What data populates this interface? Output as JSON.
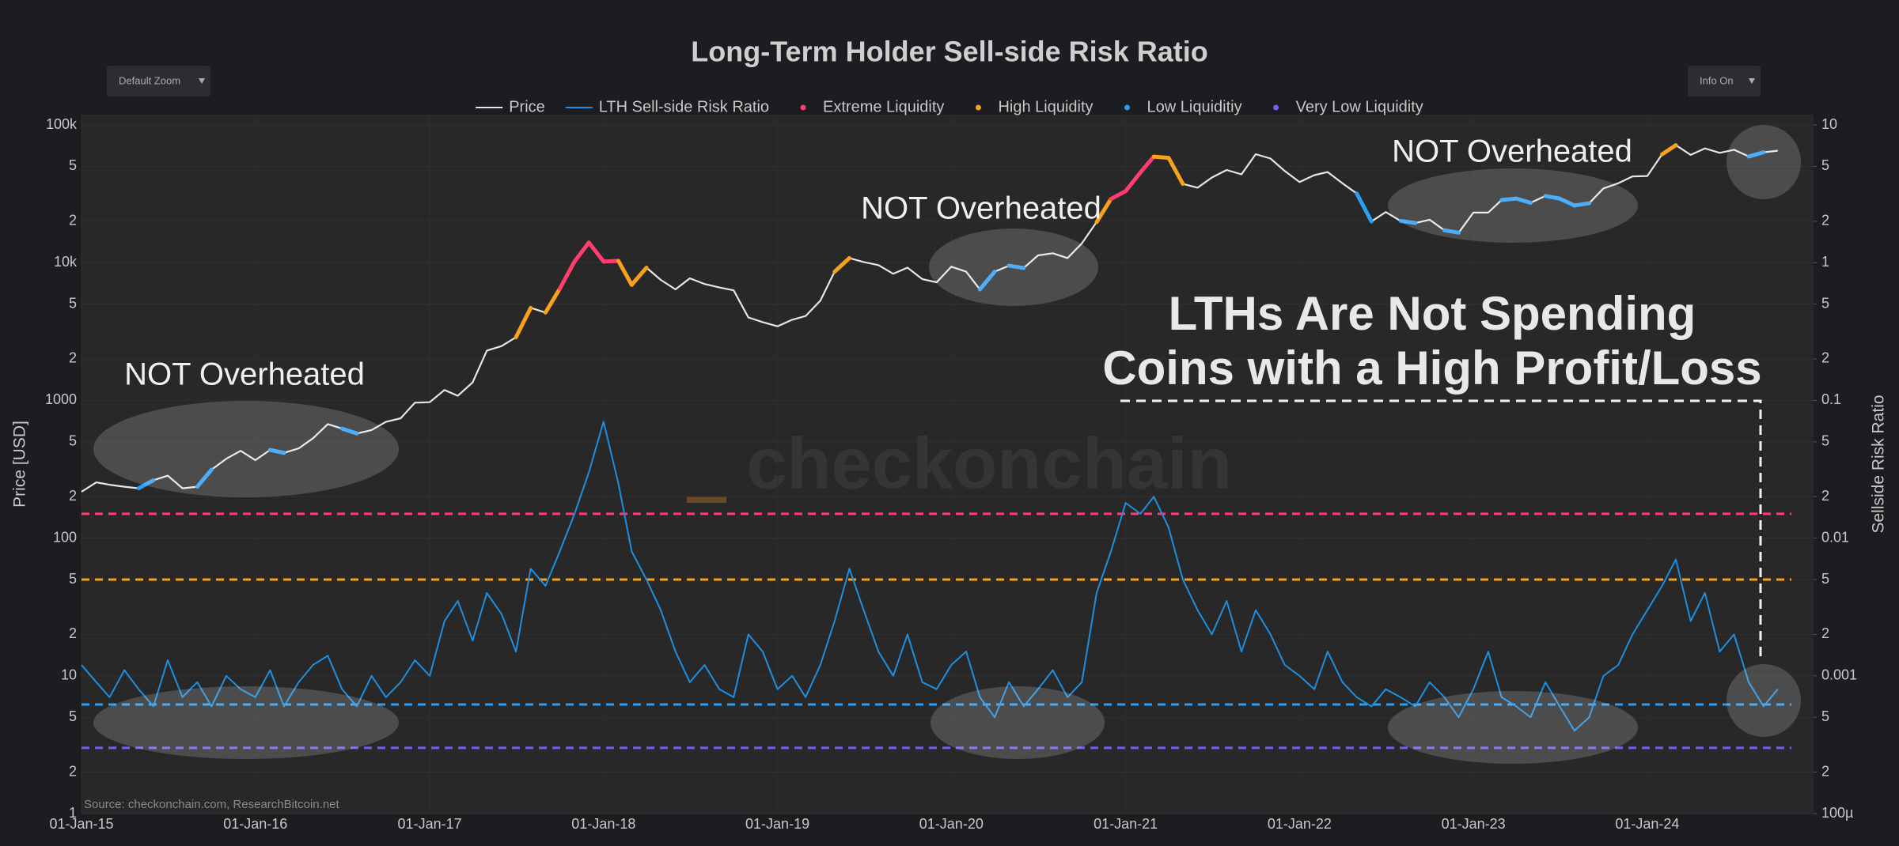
{
  "chart_data": {
    "type": "line",
    "title": "Long-Term Holder Sell-side Risk Ratio",
    "y_label": "Price [USD]",
    "y2_label": "Sellside Risk Ratio",
    "buttons": [
      "Default Zoom",
      "Info On"
    ],
    "watermark": "checkonchain",
    "source": "Source: checkonchain.com, ResearchBitcoin.net",
    "annotations": [
      "NOT Overheated",
      "NOT Overheated",
      "NOT Overheated",
      "LTHs Are Not Spending",
      "Coins with a High Profit/Loss"
    ],
    "log_y": true,
    "log_y2": true,
    "grid": true,
    "legend": "top",
    "xlim": [
      "2015-01-01",
      "2024-12-15"
    ],
    "xticks": [
      {
        "value": "2015-01-01",
        "label": "01-Jan-15"
      },
      {
        "value": "2016-01-01",
        "label": "01-Jan-16"
      },
      {
        "value": "2017-01-01",
        "label": "01-Jan-17"
      },
      {
        "value": "2018-01-01",
        "label": "01-Jan-18"
      },
      {
        "value": "2019-01-01",
        "label": "01-Jan-19"
      },
      {
        "value": "2020-01-01",
        "label": "01-Jan-20"
      },
      {
        "value": "2021-01-01",
        "label": "01-Jan-21"
      },
      {
        "value": "2022-01-01",
        "label": "01-Jan-22"
      },
      {
        "value": "2023-01-01",
        "label": "01-Jan-23"
      },
      {
        "value": "2024-01-01",
        "label": "01-Jan-24"
      }
    ],
    "ylim": [
      1,
      100000
    ],
    "yticks": [
      {
        "value": 100000,
        "label": "100k"
      },
      {
        "value": 50000,
        "label": "5"
      },
      {
        "value": 20000,
        "label": "2"
      },
      {
        "value": 10000,
        "label": "10k"
      },
      {
        "value": 5000,
        "label": "5"
      },
      {
        "value": 2000,
        "label": "2"
      },
      1000,
      {
        "value": 500,
        "label": "5"
      },
      {
        "value": 200,
        "label": "2"
      },
      100,
      {
        "value": 50,
        "label": "5"
      },
      {
        "value": 20,
        "label": "2"
      },
      10,
      5,
      2,
      1
    ],
    "y2lim": [
      0.0001,
      10
    ],
    "y2ticks": [
      10,
      5,
      2,
      1,
      {
        "value": 0.5,
        "label": "5"
      },
      {
        "value": 0.2,
        "label": "2"
      },
      0.1,
      {
        "value": 0.05,
        "label": "5"
      },
      {
        "value": 0.02,
        "label": "2"
      },
      0.01,
      {
        "value": 0.005,
        "label": "5"
      },
      {
        "value": 0.002,
        "label": "2"
      },
      0.001,
      {
        "value": 0.0005,
        "label": "5"
      },
      {
        "value": 0.0002,
        "label": "2"
      },
      {
        "value": 0.0001,
        "label": "100µ"
      }
    ],
    "x": [
      "2015-01",
      "2015-02",
      "2015-03",
      "2015-04",
      "2015-05",
      "2015-06",
      "2015-07",
      "2015-08",
      "2015-09",
      "2015-10",
      "2015-11",
      "2015-12",
      "2016-01",
      "2016-02",
      "2016-03",
      "2016-04",
      "2016-05",
      "2016-06",
      "2016-07",
      "2016-08",
      "2016-09",
      "2016-10",
      "2016-11",
      "2016-12",
      "2017-01",
      "2017-02",
      "2017-03",
      "2017-04",
      "2017-05",
      "2017-06",
      "2017-07",
      "2017-08",
      "2017-09",
      "2017-10",
      "2017-11",
      "2017-12",
      "2018-01",
      "2018-02",
      "2018-03",
      "2018-04",
      "2018-05",
      "2018-06",
      "2018-07",
      "2018-08",
      "2018-09",
      "2018-10",
      "2018-11",
      "2018-12",
      "2019-01",
      "2019-02",
      "2019-03",
      "2019-04",
      "2019-05",
      "2019-06",
      "2019-07",
      "2019-08",
      "2019-09",
      "2019-10",
      "2019-11",
      "2019-12",
      "2020-01",
      "2020-02",
      "2020-03",
      "2020-04",
      "2020-05",
      "2020-06",
      "2020-07",
      "2020-08",
      "2020-09",
      "2020-10",
      "2020-11",
      "2020-12",
      "2021-01",
      "2021-02",
      "2021-03",
      "2021-04",
      "2021-05",
      "2021-06",
      "2021-07",
      "2021-08",
      "2021-09",
      "2021-10",
      "2021-11",
      "2021-12",
      "2022-01",
      "2022-02",
      "2022-03",
      "2022-04",
      "2022-05",
      "2022-06",
      "2022-07",
      "2022-08",
      "2022-09",
      "2022-10",
      "2022-11",
      "2022-12",
      "2023-01",
      "2023-02",
      "2023-03",
      "2023-04",
      "2023-05",
      "2023-06",
      "2023-07",
      "2023-08",
      "2023-09",
      "2023-10",
      "2023-11",
      "2023-12",
      "2024-01",
      "2024-02",
      "2024-03",
      "2024-04",
      "2024-05",
      "2024-06",
      "2024-07",
      "2024-08",
      "2024-09",
      "2024-10"
    ],
    "series": [
      {
        "name": "Price",
        "color": "#e6e6e6",
        "values": [
          217,
          254,
          244,
          236,
          230,
          263,
          284,
          230,
          236,
          314,
          377,
          430,
          368,
          437,
          416,
          448,
          531,
          673,
          624,
          575,
          609,
          698,
          742,
          963,
          970,
          1190,
          1080,
          1350,
          2300,
          2480,
          2870,
          4700,
          4340,
          6470,
          10200,
          14000,
          10200,
          10300,
          6900,
          9200,
          7500,
          6400,
          7700,
          7000,
          6600,
          6300,
          4000,
          3700,
          3450,
          3850,
          4100,
          5300,
          8600,
          10800,
          10100,
          9600,
          8300,
          9200,
          7600,
          7200,
          9350,
          8600,
          6400,
          8600,
          9500,
          9150,
          11300,
          11700,
          10800,
          13800,
          19700,
          29000,
          33100,
          45200,
          58800,
          57700,
          37300,
          35000,
          41500,
          47100,
          43800,
          61300,
          57000,
          46300,
          38500,
          43200,
          45500,
          37700,
          31800,
          19900,
          23300,
          20100,
          19400,
          20500,
          17200,
          16500,
          23100,
          23100,
          28500,
          29200,
          27200,
          30500,
          29200,
          26000,
          27000,
          34600,
          37700,
          42300,
          42600,
          61200,
          71300,
          60600,
          67500,
          62700,
          66000,
          59000,
          63300,
          65000
        ]
      },
      {
        "name": "LTH Sell-side Risk Ratio",
        "color": "#1e8fe0",
        "axis": "y2",
        "values": [
          0.0012,
          0.0009,
          0.0007,
          0.0011,
          0.0008,
          0.0006,
          0.0013,
          0.0007,
          0.0009,
          0.0006,
          0.001,
          0.0008,
          0.0007,
          0.0011,
          0.0006,
          0.0009,
          0.0012,
          0.0014,
          0.0008,
          0.0006,
          0.001,
          0.0007,
          0.0009,
          0.0013,
          0.001,
          0.0025,
          0.0035,
          0.0018,
          0.004,
          0.0028,
          0.0015,
          0.006,
          0.0045,
          0.008,
          0.015,
          0.03,
          0.07,
          0.025,
          0.008,
          0.005,
          0.003,
          0.0015,
          0.0009,
          0.0012,
          0.0008,
          0.0007,
          0.002,
          0.0015,
          0.0008,
          0.001,
          0.0007,
          0.0012,
          0.0025,
          0.006,
          0.003,
          0.0015,
          0.001,
          0.002,
          0.0009,
          0.0008,
          0.0012,
          0.0015,
          0.0007,
          0.0005,
          0.0009,
          0.0006,
          0.0008,
          0.0011,
          0.0007,
          0.0009,
          0.004,
          0.008,
          0.018,
          0.015,
          0.02,
          0.012,
          0.005,
          0.003,
          0.002,
          0.0035,
          0.0015,
          0.003,
          0.002,
          0.0012,
          0.001,
          0.0008,
          0.0015,
          0.0009,
          0.0007,
          0.0006,
          0.0008,
          0.0007,
          0.0006,
          0.0009,
          0.0007,
          0.0005,
          0.0008,
          0.0015,
          0.0007,
          0.0006,
          0.0005,
          0.0009,
          0.0006,
          0.0004,
          0.0005,
          0.001,
          0.0012,
          0.002,
          0.003,
          0.0045,
          0.007,
          0.0025,
          0.004,
          0.0015,
          0.002,
          0.0009,
          0.0006,
          0.0008
        ]
      },
      {
        "name": "Extreme Liquidity",
        "color": "#ff3d6e",
        "axis": "y2",
        "level": 0.015
      },
      {
        "name": "High Liquidity",
        "color": "#f7a21a",
        "axis": "y2",
        "level": 0.005
      },
      {
        "name": "Low Liquiditiy",
        "color": "#2a9df4",
        "axis": "y2",
        "level": 0.00062
      },
      {
        "name": "Very Low Liquidity",
        "color": "#7b5cf0",
        "axis": "y2",
        "level": 0.0003
      }
    ]
  }
}
